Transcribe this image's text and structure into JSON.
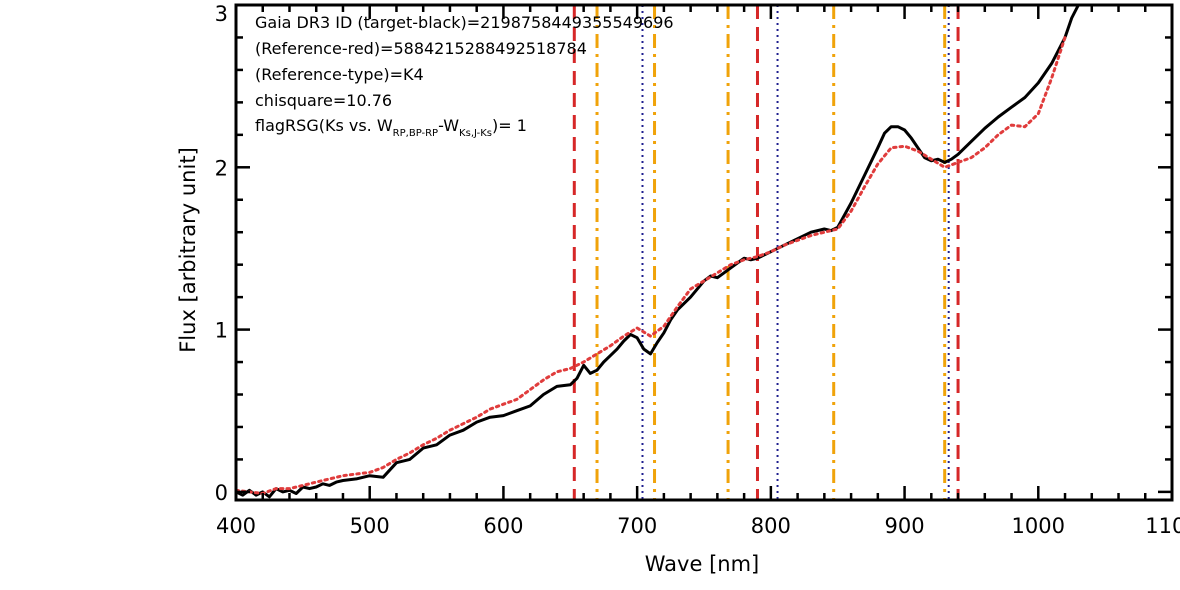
{
  "chart_data": {
    "type": "line",
    "title": "",
    "xlabel": "Wave [nm]",
    "ylabel": "Flux [arbitrary unit]",
    "xlim": [
      400,
      1100
    ],
    "ylim": [
      -0.05,
      3.0
    ],
    "x_ticks": [
      400,
      500,
      600,
      700,
      800,
      900,
      1000,
      1100
    ],
    "x_tick_labels": [
      "400",
      "500",
      "600",
      "700",
      "800",
      "900",
      "1000",
      "1100"
    ],
    "y_ticks": [
      0,
      1,
      2,
      3
    ],
    "y_tick_labels": [
      "0",
      "1",
      "2",
      "3"
    ],
    "grid": false,
    "annotations": {
      "line1": "Gaia DR3 ID (target-black)=2198758449355549696",
      "line2": "(Reference-red)=5884215288492518784",
      "line3": "(Reference-type)=K4",
      "line4": "chisquare=10.76",
      "line5_prefix": "flagRSG(Ks vs. W",
      "line5_sub1": "RP,BP-RP",
      "line5_mid": "-W",
      "line5_sub2": "Ks,J-Ks",
      "line5_suffix": ")= 1"
    },
    "series": [
      {
        "color": "#000000",
        "style": "solid",
        "x": [
          400,
          405,
          410,
          415,
          420,
          425,
          430,
          435,
          440,
          445,
          450,
          455,
          460,
          465,
          470,
          475,
          480,
          490,
          500,
          510,
          520,
          530,
          540,
          550,
          560,
          570,
          580,
          590,
          600,
          610,
          620,
          630,
          640,
          650,
          655,
          660,
          665,
          670,
          675,
          680,
          685,
          690,
          695,
          700,
          705,
          710,
          715,
          720,
          725,
          730,
          740,
          750,
          755,
          760,
          765,
          770,
          775,
          780,
          785,
          790,
          800,
          810,
          820,
          830,
          840,
          845,
          850,
          860,
          870,
          880,
          885,
          890,
          895,
          900,
          905,
          910,
          915,
          920,
          925,
          930,
          935,
          940,
          950,
          960,
          970,
          980,
          990,
          1000,
          1010,
          1020,
          1025,
          1030
        ],
        "y": [
          0.0,
          -0.02,
          0.01,
          -0.02,
          0.0,
          -0.03,
          0.02,
          0.0,
          0.01,
          -0.01,
          0.03,
          0.02,
          0.03,
          0.05,
          0.04,
          0.06,
          0.07,
          0.08,
          0.1,
          0.09,
          0.18,
          0.2,
          0.27,
          0.29,
          0.35,
          0.38,
          0.43,
          0.46,
          0.47,
          0.5,
          0.53,
          0.6,
          0.65,
          0.66,
          0.7,
          0.78,
          0.73,
          0.75,
          0.8,
          0.84,
          0.88,
          0.93,
          0.97,
          0.95,
          0.88,
          0.85,
          0.92,
          0.98,
          1.06,
          1.12,
          1.2,
          1.3,
          1.33,
          1.32,
          1.35,
          1.38,
          1.41,
          1.44,
          1.43,
          1.44,
          1.48,
          1.52,
          1.56,
          1.6,
          1.62,
          1.61,
          1.63,
          1.78,
          1.95,
          2.12,
          2.21,
          2.25,
          2.25,
          2.23,
          2.18,
          2.12,
          2.06,
          2.04,
          2.05,
          2.03,
          2.05,
          2.08,
          2.16,
          2.24,
          2.31,
          2.37,
          2.43,
          2.52,
          2.64,
          2.8,
          2.92,
          3.0
        ]
      },
      {
        "color": "#e03c3c",
        "style": "dotted",
        "x": [
          400,
          410,
          420,
          430,
          440,
          450,
          460,
          470,
          480,
          490,
          500,
          510,
          520,
          530,
          540,
          550,
          560,
          570,
          580,
          590,
          600,
          610,
          620,
          630,
          640,
          650,
          660,
          670,
          680,
          690,
          700,
          710,
          720,
          730,
          740,
          750,
          760,
          770,
          780,
          790,
          800,
          810,
          820,
          830,
          840,
          850,
          860,
          870,
          880,
          890,
          900,
          910,
          920,
          930,
          940,
          950,
          960,
          970,
          980,
          990,
          1000,
          1010,
          1020
        ],
        "y": [
          0.01,
          0.0,
          -0.01,
          0.02,
          0.02,
          0.04,
          0.06,
          0.08,
          0.1,
          0.11,
          0.12,
          0.15,
          0.2,
          0.24,
          0.29,
          0.33,
          0.38,
          0.42,
          0.46,
          0.51,
          0.54,
          0.57,
          0.63,
          0.69,
          0.74,
          0.76,
          0.8,
          0.85,
          0.9,
          0.96,
          1.01,
          0.96,
          1.02,
          1.14,
          1.25,
          1.3,
          1.35,
          1.4,
          1.43,
          1.45,
          1.48,
          1.52,
          1.55,
          1.58,
          1.6,
          1.62,
          1.73,
          1.88,
          2.02,
          2.12,
          2.13,
          2.1,
          2.05,
          2.0,
          2.03,
          2.06,
          2.12,
          2.2,
          2.26,
          2.25,
          2.33,
          2.55,
          2.8
        ]
      }
    ],
    "vertical_lines": [
      {
        "x": 653,
        "color": "#d62728",
        "style": "dashed"
      },
      {
        "x": 670,
        "color": "#f0a30a",
        "style": "dashdot"
      },
      {
        "x": 704,
        "color": "#1f1f8f",
        "style": "dotted"
      },
      {
        "x": 713,
        "color": "#f0a30a",
        "style": "dashdot"
      },
      {
        "x": 768,
        "color": "#f0a30a",
        "style": "dashdot"
      },
      {
        "x": 790,
        "color": "#d62728",
        "style": "dashed"
      },
      {
        "x": 805,
        "color": "#1f1f8f",
        "style": "dotted"
      },
      {
        "x": 847,
        "color": "#f0a30a",
        "style": "dashdot"
      },
      {
        "x": 930,
        "color": "#f0a30a",
        "style": "dashdot"
      },
      {
        "x": 933,
        "color": "#1f1f8f",
        "style": "dotted"
      },
      {
        "x": 940,
        "color": "#d62728",
        "style": "dashed"
      }
    ]
  }
}
